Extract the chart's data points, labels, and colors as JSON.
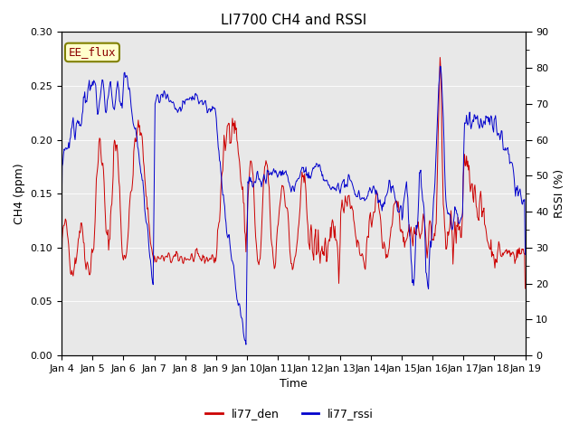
{
  "title": "LI7700 CH4 and RSSI",
  "xlabel": "Time",
  "ylabel_left": "CH4 (ppm)",
  "ylabel_right": "RSSI (%)",
  "annotation": "EE_flux",
  "legend_labels": [
    "li77_den",
    "li77_rssi"
  ],
  "x_tick_labels": [
    "Jan 4",
    "Jan 5",
    "Jan 6",
    "Jan 7",
    "Jan 8",
    "Jan 9",
    "Jan 10",
    "Jan 11",
    "Jan 12",
    "Jan 13",
    "Jan 14",
    "Jan 15",
    "Jan 16",
    "Jan 17",
    "Jan 18",
    "Jan 19"
  ],
  "ylim_left": [
    0.0,
    0.3
  ],
  "ylim_right": [
    0,
    90
  ],
  "yticks_left": [
    0.0,
    0.05,
    0.1,
    0.15,
    0.2,
    0.25,
    0.3
  ],
  "yticks_right": [
    0,
    10,
    20,
    30,
    40,
    50,
    60,
    70,
    80,
    90
  ],
  "bg_color": "#e8e8e8",
  "fig_bg_color": "#ffffff",
  "line_color_red": "#cc0000",
  "line_color_blue": "#0000cc",
  "linewidth": 0.7,
  "title_fontsize": 11,
  "axis_fontsize": 9,
  "tick_fontsize": 8,
  "legend_fontsize": 9,
  "annot_fontsize": 9
}
